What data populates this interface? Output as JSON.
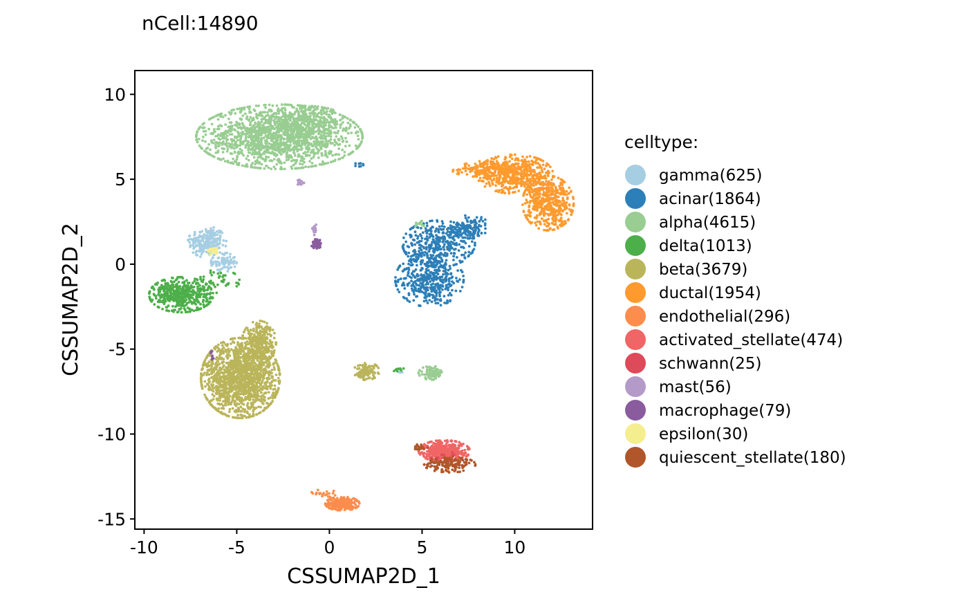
{
  "chart_data": {
    "type": "scatter",
    "title": "nCell:14890",
    "xlabel": "CSSUMAP2D_1",
    "ylabel": "CSSUMAP2D_2",
    "xlim": [
      -10.5,
      14.2
    ],
    "ylim": [
      -15.6,
      11.4
    ],
    "xticks": [
      -10,
      -5,
      0,
      5,
      10
    ],
    "yticks": [
      10,
      5,
      0,
      -5,
      -10,
      -15
    ],
    "xtick_labels": [
      "-10",
      "-5",
      "0",
      "5",
      "10"
    ],
    "ytick_labels": [
      "10",
      "5",
      "0",
      "-5",
      "-10",
      "-15"
    ],
    "grid": false,
    "legend_title": "celltype:",
    "legend_position": "right",
    "series": [
      {
        "name": "gamma(625)",
        "color": "#a6cee3",
        "clusters": [
          {
            "cx": -6.6,
            "cy": 1.3,
            "rx": 0.9,
            "ry": 0.8,
            "n": 230
          },
          {
            "cx": -5.7,
            "cy": 0.1,
            "rx": 0.6,
            "ry": 0.5,
            "n": 80
          },
          {
            "cx": 3.8,
            "cy": -6.3,
            "rx": 0.3,
            "ry": 0.1,
            "n": 6
          }
        ]
      },
      {
        "name": "acinar(1864)",
        "color": "#2c7fb8",
        "clusters": [
          {
            "cx": 5.9,
            "cy": 1.2,
            "rx": 1.7,
            "ry": 1.2,
            "n": 380
          },
          {
            "cx": 5.4,
            "cy": -0.9,
            "rx": 1.6,
            "ry": 1.4,
            "n": 420
          },
          {
            "cx": 7.6,
            "cy": 2.2,
            "rx": 0.9,
            "ry": 0.6,
            "n": 120
          },
          {
            "cx": 1.6,
            "cy": 5.8,
            "rx": 0.2,
            "ry": 0.2,
            "n": 8
          }
        ]
      },
      {
        "name": "alpha(4615)",
        "color": "#99cd92",
        "clusters": [
          {
            "cx": -2.7,
            "cy": 7.5,
            "rx": 3.9,
            "ry": 1.65,
            "n": 1600
          },
          {
            "cx": -1.2,
            "cy": 8.4,
            "rx": 1.8,
            "ry": 0.8,
            "n": 250
          },
          {
            "cx": 5.5,
            "cy": -6.4,
            "rx": 0.6,
            "ry": 0.35,
            "n": 90
          },
          {
            "cx": 4.8,
            "cy": 2.4,
            "rx": 0.4,
            "ry": 0.2,
            "n": 12
          }
        ]
      },
      {
        "name": "delta(1013)",
        "color": "#4daf4a",
        "clusters": [
          {
            "cx": -8.0,
            "cy": -1.8,
            "rx": 1.5,
            "ry": 0.9,
            "n": 480
          },
          {
            "cx": -6.0,
            "cy": -1.0,
            "rx": 1.0,
            "ry": 0.6,
            "n": 50
          },
          {
            "cx": 3.7,
            "cy": -6.2,
            "rx": 0.3,
            "ry": 0.1,
            "n": 10
          }
        ]
      },
      {
        "name": "beta(3679)",
        "color": "#bab55a",
        "clusters": [
          {
            "cx": -4.8,
            "cy": -6.7,
            "rx": 1.85,
            "ry": 2.05,
            "n": 1500
          },
          {
            "cx": -3.8,
            "cy": -4.6,
            "rx": 0.8,
            "ry": 1.1,
            "n": 300
          },
          {
            "cx": 2.0,
            "cy": -6.3,
            "rx": 0.6,
            "ry": 0.45,
            "n": 110
          }
        ]
      },
      {
        "name": "ductal(1954)",
        "color": "#ff9a2e",
        "clusters": [
          {
            "cx": 10.0,
            "cy": 5.3,
            "rx": 1.8,
            "ry": 1.0,
            "n": 520
          },
          {
            "cx": 11.8,
            "cy": 3.6,
            "rx": 1.2,
            "ry": 1.4,
            "n": 500
          },
          {
            "cx": 8.2,
            "cy": 5.6,
            "rx": 1.4,
            "ry": 0.4,
            "n": 120
          }
        ]
      },
      {
        "name": "endothelial(296)",
        "color": "#fc8d4d",
        "clusters": [
          {
            "cx": 0.7,
            "cy": -14.1,
            "rx": 0.8,
            "ry": 0.35,
            "n": 230
          },
          {
            "cx": -0.3,
            "cy": -13.5,
            "rx": 0.6,
            "ry": 0.2,
            "n": 20
          }
        ]
      },
      {
        "name": "activated_stellate(474)",
        "color": "#f06565",
        "clusters": [
          {
            "cx": 6.2,
            "cy": -11.0,
            "rx": 1.2,
            "ry": 0.55,
            "n": 400
          }
        ]
      },
      {
        "name": "schwann(25)",
        "color": "#de4a5a",
        "clusters": [
          {
            "cx": 6.5,
            "cy": -11.5,
            "rx": 0.9,
            "ry": 0.4,
            "n": 20
          }
        ]
      },
      {
        "name": "mast(56)",
        "color": "#b49ac9",
        "clusters": [
          {
            "cx": -1.6,
            "cy": 4.8,
            "rx": 0.2,
            "ry": 0.15,
            "n": 15
          },
          {
            "cx": -0.8,
            "cy": 2.0,
            "rx": 0.2,
            "ry": 0.3,
            "n": 15
          }
        ]
      },
      {
        "name": "macrophage(79)",
        "color": "#8a5c9e",
        "clusters": [
          {
            "cx": -0.7,
            "cy": 1.2,
            "rx": 0.25,
            "ry": 0.25,
            "n": 60
          },
          {
            "cx": -6.3,
            "cy": -5.3,
            "rx": 0.1,
            "ry": 0.3,
            "n": 8
          }
        ]
      },
      {
        "name": "epsilon(30)",
        "color": "#f4ee8e",
        "clusters": [
          {
            "cx": -6.3,
            "cy": 0.8,
            "rx": 0.3,
            "ry": 0.3,
            "n": 20
          }
        ]
      },
      {
        "name": "quiescent_stellate(180)",
        "color": "#b0562a",
        "clusters": [
          {
            "cx": 6.5,
            "cy": -11.8,
            "rx": 1.2,
            "ry": 0.4,
            "n": 140
          },
          {
            "cx": 4.9,
            "cy": -10.8,
            "rx": 0.4,
            "ry": 0.2,
            "n": 20
          }
        ]
      }
    ]
  }
}
